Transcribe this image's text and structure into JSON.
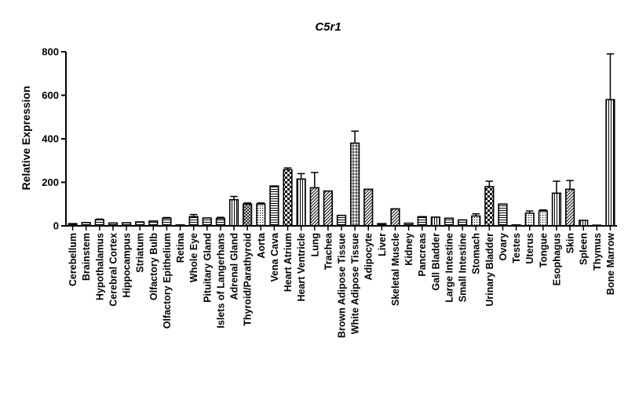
{
  "chart_data": {
    "type": "bar",
    "title": "C5r1",
    "xlabel": "",
    "ylabel": "Relative Expression",
    "ylim": [
      0,
      800
    ],
    "yticks": [
      "0",
      "200",
      "400",
      "600",
      "800"
    ],
    "grid": false,
    "legend": "none",
    "categories": [
      "Cerebellum",
      "Brainstem",
      "Hypothalamus",
      "Cerebral Cortex",
      "Hippocampus",
      "Striatum",
      "Olfactory Bulb",
      "Olfactory Epithelium",
      "Retina",
      "Whole Eye",
      "Pituitary Gland",
      "Islets of Langerhans",
      "Adrenal Gland",
      "Thyroid/Parathyroid",
      "Aorta",
      "Vena Cava",
      "Heart Atrium",
      "Heart Ventricle",
      "Lung",
      "Trachea",
      "Brown Adipose Tissue",
      "White Adipose Tissue",
      "Adipocyte",
      "Liver",
      "Skeletal Muscle",
      "Kidney",
      "Pancreas",
      "Gall Bladder",
      "Large Intestine",
      "Small Intestine",
      "Stomach",
      "Urinary Bladder",
      "Ovary",
      "Testes",
      "Uterus",
      "Tongue",
      "Esophagus",
      "Skin",
      "Spleen",
      "Thymus",
      "Bone Marrow"
    ],
    "values": [
      10,
      15,
      28,
      13,
      14,
      18,
      22,
      35,
      4,
      42,
      36,
      34,
      120,
      100,
      100,
      183,
      258,
      215,
      175,
      160,
      48,
      380,
      168,
      10,
      78,
      12,
      42,
      40,
      35,
      27,
      45,
      180,
      100,
      4,
      58,
      68,
      150,
      168,
      25,
      3,
      580
    ],
    "errors": [
      0,
      0,
      3,
      0,
      0,
      0,
      0,
      3,
      0,
      10,
      0,
      5,
      15,
      5,
      5,
      0,
      8,
      25,
      70,
      0,
      0,
      55,
      0,
      0,
      0,
      0,
      0,
      0,
      0,
      0,
      10,
      25,
      0,
      0,
      10,
      5,
      55,
      40,
      0,
      0,
      210
    ],
    "patterns": [
      "hlines",
      "hlines",
      "hlines",
      "hlines",
      "hlines",
      "hlines",
      "hlines",
      "hlines",
      "hlines",
      "hlines",
      "hlines",
      "hlines",
      "vlines",
      "crosshatch",
      "dots",
      "hlines",
      "checker",
      "vlines",
      "diag",
      "diag",
      "hlines",
      "grid",
      "diag",
      "hlines",
      "diag",
      "hlines",
      "hlines",
      "vlines",
      "hlines",
      "hlines",
      "dots",
      "checker",
      "hlines",
      "hlines",
      "dots",
      "dots",
      "vlines",
      "diag",
      "vlines",
      "hlines",
      "vlines"
    ]
  }
}
